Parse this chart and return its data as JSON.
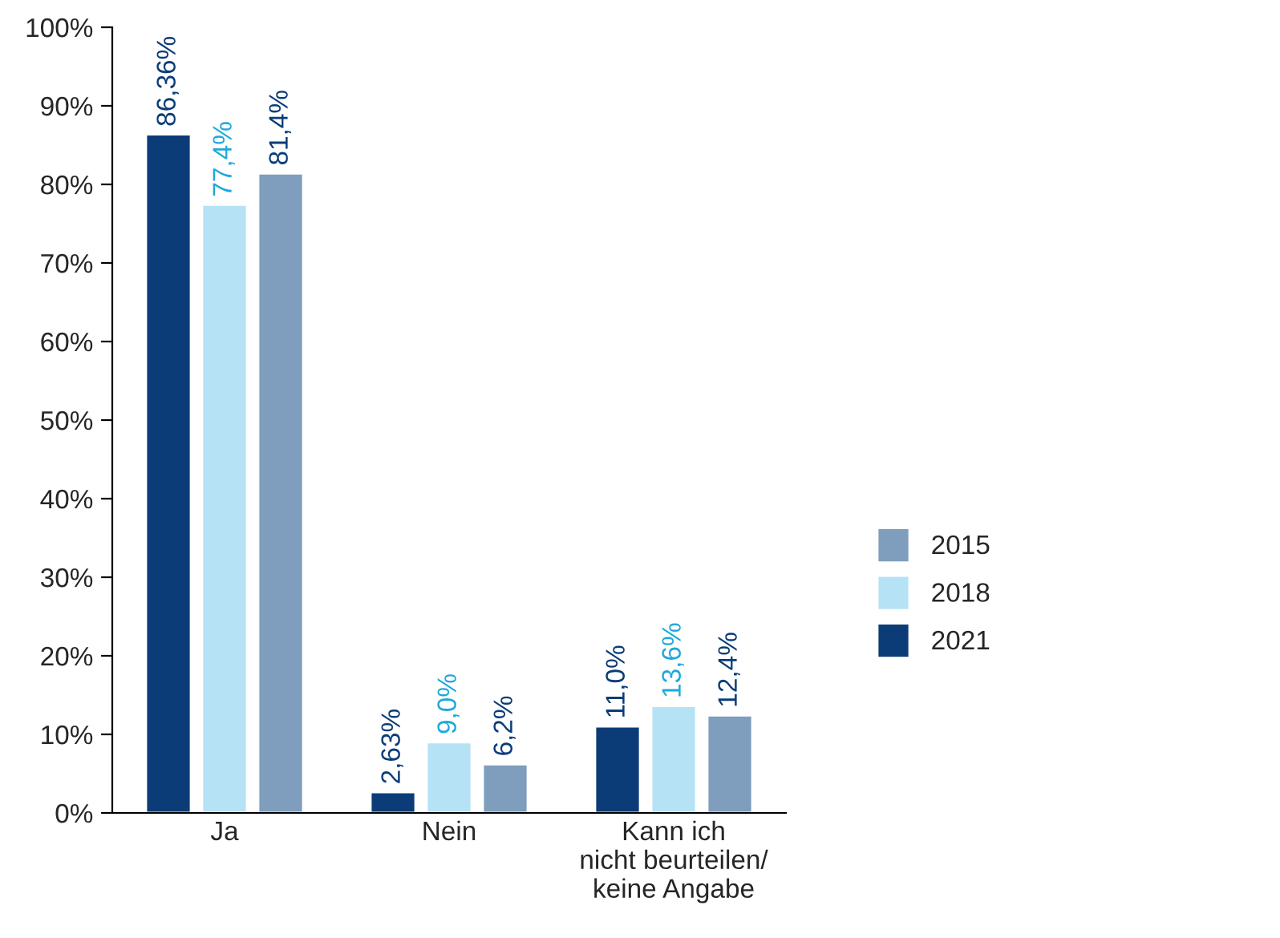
{
  "chart_data": {
    "type": "bar",
    "categories": [
      "Ja",
      "Nein",
      "Kann ich\nnicht beurteilen/\nkeine Angabe"
    ],
    "series": [
      {
        "name": "2021",
        "color": "#0b3c78",
        "values": [
          86.36,
          2.63,
          11.0
        ],
        "value_labels": [
          "86,36%",
          "2,63%",
          "11,0%"
        ]
      },
      {
        "name": "2018",
        "color": "#b5e3f5",
        "values": [
          77.4,
          9.0,
          13.6
        ],
        "value_labels": [
          "77,4%",
          "9,0%",
          "13,6%"
        ]
      },
      {
        "name": "2015",
        "color": "#7f9dbd",
        "values": [
          81.4,
          6.2,
          12.4
        ],
        "value_labels": [
          "81,4%",
          "6,2%",
          "12,4%"
        ]
      }
    ],
    "ylim": [
      0,
      100
    ],
    "yticks": [
      {
        "value": 0,
        "label": "0%"
      },
      {
        "value": 10,
        "label": "10%"
      },
      {
        "value": 20,
        "label": "20%"
      },
      {
        "value": 30,
        "label": "30%"
      },
      {
        "value": 40,
        "label": "40%"
      },
      {
        "value": 50,
        "label": "50%"
      },
      {
        "value": 60,
        "label": "60%"
      },
      {
        "value": 70,
        "label": "70%"
      },
      {
        "value": 80,
        "label": "80%"
      },
      {
        "value": 90,
        "label": "90%"
      },
      {
        "value": 100,
        "label": "100%"
      }
    ],
    "grid": false,
    "legend": "right"
  }
}
